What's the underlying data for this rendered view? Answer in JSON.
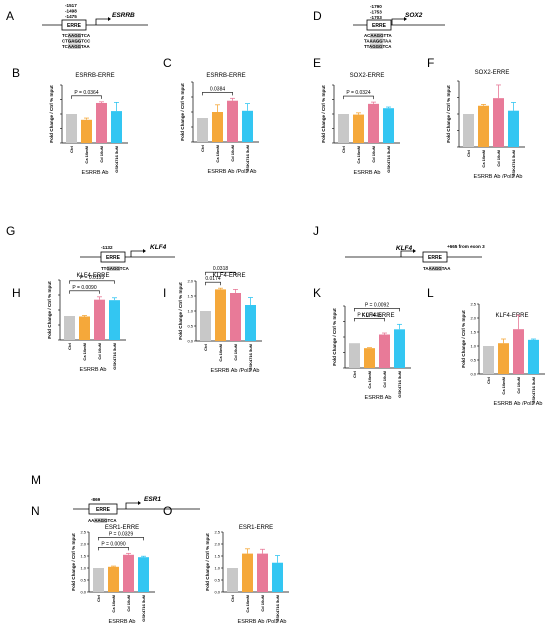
{
  "colors": {
    "ctrl": "#c8c8c8",
    "ca": "#f5a83a",
    "cd": "#e87a98",
    "gsk": "#33c6f2",
    "axis": "#000000",
    "seq_highlight": "#c8c8c8"
  },
  "diagrams": [
    {
      "panel": "A",
      "gene": "ESRRB",
      "positions": [
        "-1517",
        "-1498",
        "-1475"
      ],
      "element": "ERRE",
      "sequences": [
        "TCA̲AGGTCA",
        "CTGAGGTCC",
        "TCAAGGTAA"
      ],
      "seq_text": [
        "TCAAGGTCA",
        "CTGAGGTCC",
        "TCAAGGTAA"
      ]
    },
    {
      "panel": "D",
      "gene": "SOX2",
      "positions": [
        "-1790",
        "-1753",
        "-1703"
      ],
      "element": "ERRE",
      "seq_text": [
        "ACAAGGTTA",
        "TAAAGGTAA",
        "TTAGGGTCA"
      ]
    },
    {
      "panel": "G",
      "gene": "KLF4",
      "positions": [
        "-1132"
      ],
      "element": "ERRE",
      "seq_text": [
        "TTGAGGTCA"
      ]
    },
    {
      "panel": "J",
      "gene": "KLF4",
      "positions": [
        "+665 from exon 3"
      ],
      "element": "ERRE",
      "seq_text": [
        "TAAAGGTAA"
      ]
    },
    {
      "panel": "M",
      "gene": "ESR1",
      "positions": [
        "-869"
      ],
      "element": "ERRE",
      "seq_text": [
        "AAAAGGTCA"
      ]
    }
  ],
  "chart_data": [
    {
      "panel": "B",
      "type": "bar",
      "title": "ESRRB-ERRE",
      "ylabel": "Fold Change / Ctrl % Input",
      "xlabel": "ESRRB Ab",
      "categories": [
        "Ctrl",
        "Ca 10mM",
        "Cd 10uM",
        "GSK4716 5uM"
      ],
      "values": [
        1.0,
        0.8,
        1.38,
        1.1
      ],
      "errors": [
        0,
        0.06,
        0.04,
        0.3
      ],
      "ylim": [
        0,
        2.0
      ],
      "yticks": [],
      "show_ytick_labels": false,
      "comparisons": [
        {
          "from": 0,
          "to": 2,
          "label": "P = 0.0364"
        }
      ]
    },
    {
      "panel": "C",
      "type": "bar",
      "title": "ESRRB-ERRE",
      "ylabel": "Fold Change / Ctrl % Input",
      "xlabel": "ESRRB Ab /Pol2 Ab",
      "categories": [
        "Ctrl",
        "Ca 10mM",
        "Cd 10uM",
        "GSK4716 5uM"
      ],
      "values": [
        1.0,
        1.25,
        1.72,
        1.3
      ],
      "errors": [
        0,
        0.3,
        0.1,
        0.3
      ],
      "ylim": [
        0,
        2.5
      ],
      "yticks": [],
      "show_ytick_labels": false,
      "comparisons": [
        {
          "from": 0,
          "to": 2,
          "label": "0.0384"
        }
      ]
    },
    {
      "panel": "E",
      "type": "bar",
      "title": "SOX2-ERRE",
      "ylabel": "Fold Change / Ctrl % Input",
      "xlabel": "ESRRB Ab",
      "categories": [
        "Ctrl",
        "Ca 10mM",
        "Cd 10uM",
        "GSK4716 5uM"
      ],
      "values": [
        1.0,
        0.98,
        1.35,
        1.2
      ],
      "errors": [
        0,
        0.06,
        0.06,
        0.04
      ],
      "ylim": [
        0,
        2.0
      ],
      "yticks": [],
      "show_ytick_labels": false,
      "comparisons": [
        {
          "from": 0,
          "to": 2,
          "label": "P = 0.0324"
        }
      ]
    },
    {
      "panel": "F",
      "type": "bar",
      "title": "SOX2-ERRE",
      "ylabel": "Fold Change / Ctrl % Input",
      "xlabel": "ESRRB Ab /Pol2 Ab",
      "categories": [
        "Ctrl",
        "Ca 10mM",
        "Cd 10uM",
        "GSK4716 5uM"
      ],
      "values": [
        1.0,
        1.25,
        1.48,
        1.1
      ],
      "errors": [
        0,
        0.04,
        0.4,
        0.25
      ],
      "ylim": [
        0,
        2.0
      ],
      "yticks": [],
      "show_ytick_labels": false,
      "comparisons": []
    },
    {
      "panel": "H",
      "type": "bar",
      "title": "KLF4-ERRE",
      "ylabel": "Fold Change / Ctrl % Input",
      "xlabel": "ESRRB Ab",
      "categories": [
        "Ctrl",
        "Ca 10mM",
        "Cd 10uM",
        "GSK4716 5uM"
      ],
      "values": [
        1.0,
        0.98,
        1.68,
        1.66
      ],
      "errors": [
        0,
        0.04,
        0.12,
        0.1
      ],
      "ylim": [
        0,
        2.5
      ],
      "yticks": [],
      "show_ytick_labels": false,
      "comparisons": [
        {
          "from": 0,
          "to": 2,
          "label": "P = 0.0090"
        },
        {
          "from": 0,
          "to": 3,
          "label": "P = 0.0153"
        }
      ]
    },
    {
      "panel": "I",
      "type": "bar",
      "title": "KLF4-ERRE",
      "ylabel": "Fold Change / Ctrl % Input",
      "xlabel": "ESRRB Ab /Pol2 Ab",
      "categories": [
        "Ctrl",
        "Ca 10mM",
        "Cd 10uM",
        "GSK4716 5uM"
      ],
      "values": [
        1.0,
        1.72,
        1.6,
        1.2
      ],
      "errors": [
        0,
        0.04,
        0.12,
        0.25
      ],
      "ylim": [
        0,
        2.0
      ],
      "yticks": [
        0,
        0.5,
        1.0,
        1.5,
        2.0
      ],
      "ytick_labels": [
        "0.0",
        "0.5",
        "1.0",
        "1.5",
        "2.0"
      ],
      "show_ytick_labels": true,
      "comparisons": [
        {
          "from": 0,
          "to": 1,
          "label": "0.0174"
        },
        {
          "from": 0,
          "to": 2,
          "label": "0.0318"
        }
      ]
    },
    {
      "panel": "K",
      "type": "bar",
      "title": "KLF4-ERRE",
      "ylabel": "Fold Change / Ctrl % Input",
      "xlabel": "ESRRB Ab",
      "categories": [
        "Ctrl",
        "Ca 10mM",
        "Cd 10uM",
        "GSK4716 5uM"
      ],
      "values": [
        1.0,
        0.8,
        1.35,
        1.56
      ],
      "errors": [
        0,
        0.02,
        0.06,
        0.2
      ],
      "ylim": [
        0,
        2.5
      ],
      "yticks": [],
      "show_ytick_labels": false,
      "comparisons": [
        {
          "from": 0,
          "to": 2,
          "label": "P = 0.0416"
        },
        {
          "from": 0,
          "to": 3,
          "label": "P = 0.0092"
        }
      ]
    },
    {
      "panel": "L",
      "type": "bar",
      "title": "KLF4-ERRE",
      "ylabel": "Fold Change / Ctrl % Input",
      "xlabel": "ESRRB Ab /Pol2 Ab",
      "categories": [
        "Ctrl",
        "Ca 10mM",
        "Cd 10uM",
        "GSK4716 5uM"
      ],
      "values": [
        1.0,
        1.1,
        1.6,
        1.22
      ],
      "errors": [
        0,
        0.15,
        0.5,
        0.03
      ],
      "ylim": [
        0,
        2.5
      ],
      "yticks": [
        0,
        0.5,
        1.0,
        1.5,
        2.0,
        2.5
      ],
      "ytick_labels": [
        "0.0",
        "0.5",
        "1.0",
        "1.5",
        "2.0",
        "2.5"
      ],
      "show_ytick_labels": true,
      "comparisons": []
    },
    {
      "panel": "N",
      "type": "bar",
      "title": "ESR1-ERRE",
      "ylabel": "Fold Change / Ctrl % Input",
      "xlabel": "ESRRB Ab",
      "categories": [
        "Ctrl",
        "Ca 10mM",
        "Cd 10uM",
        "GSK4716 5uM"
      ],
      "values": [
        1.0,
        1.05,
        1.55,
        1.45
      ],
      "errors": [
        0,
        0.03,
        0.06,
        0.04
      ],
      "ylim": [
        0,
        2.5
      ],
      "yticks": [
        0,
        0.5,
        1.0,
        1.5,
        2.0,
        2.5
      ],
      "ytick_labels": [
        "0.0",
        "0.5",
        "1.0",
        "1.5",
        "2.0",
        "2.5"
      ],
      "show_ytick_labels": true,
      "comparisons": [
        {
          "from": 0,
          "to": 2,
          "label": "P = 0.0090"
        },
        {
          "from": 0,
          "to": 3,
          "label": "P = 0.0329"
        }
      ]
    },
    {
      "panel": "O",
      "type": "bar",
      "title": "ESR1-ERRE",
      "ylabel": "Fold Change / Ctrl % Input",
      "xlabel": "ESRRB Ab /Pol2 Ab",
      "categories": [
        "Ctrl",
        "Ca 10mM",
        "Cd 10uM",
        "GSK4716 5uM"
      ],
      "values": [
        1.0,
        1.6,
        1.6,
        1.22
      ],
      "errors": [
        0,
        0.2,
        0.18,
        0.3
      ],
      "ylim": [
        0,
        2.5
      ],
      "yticks": [
        0,
        0.5,
        1.0,
        1.5,
        2.0,
        2.5
      ],
      "ytick_labels": [
        "0.0",
        "0.5",
        "1.0",
        "1.5",
        "2.0",
        "2.5"
      ],
      "show_ytick_labels": true,
      "comparisons": []
    }
  ]
}
